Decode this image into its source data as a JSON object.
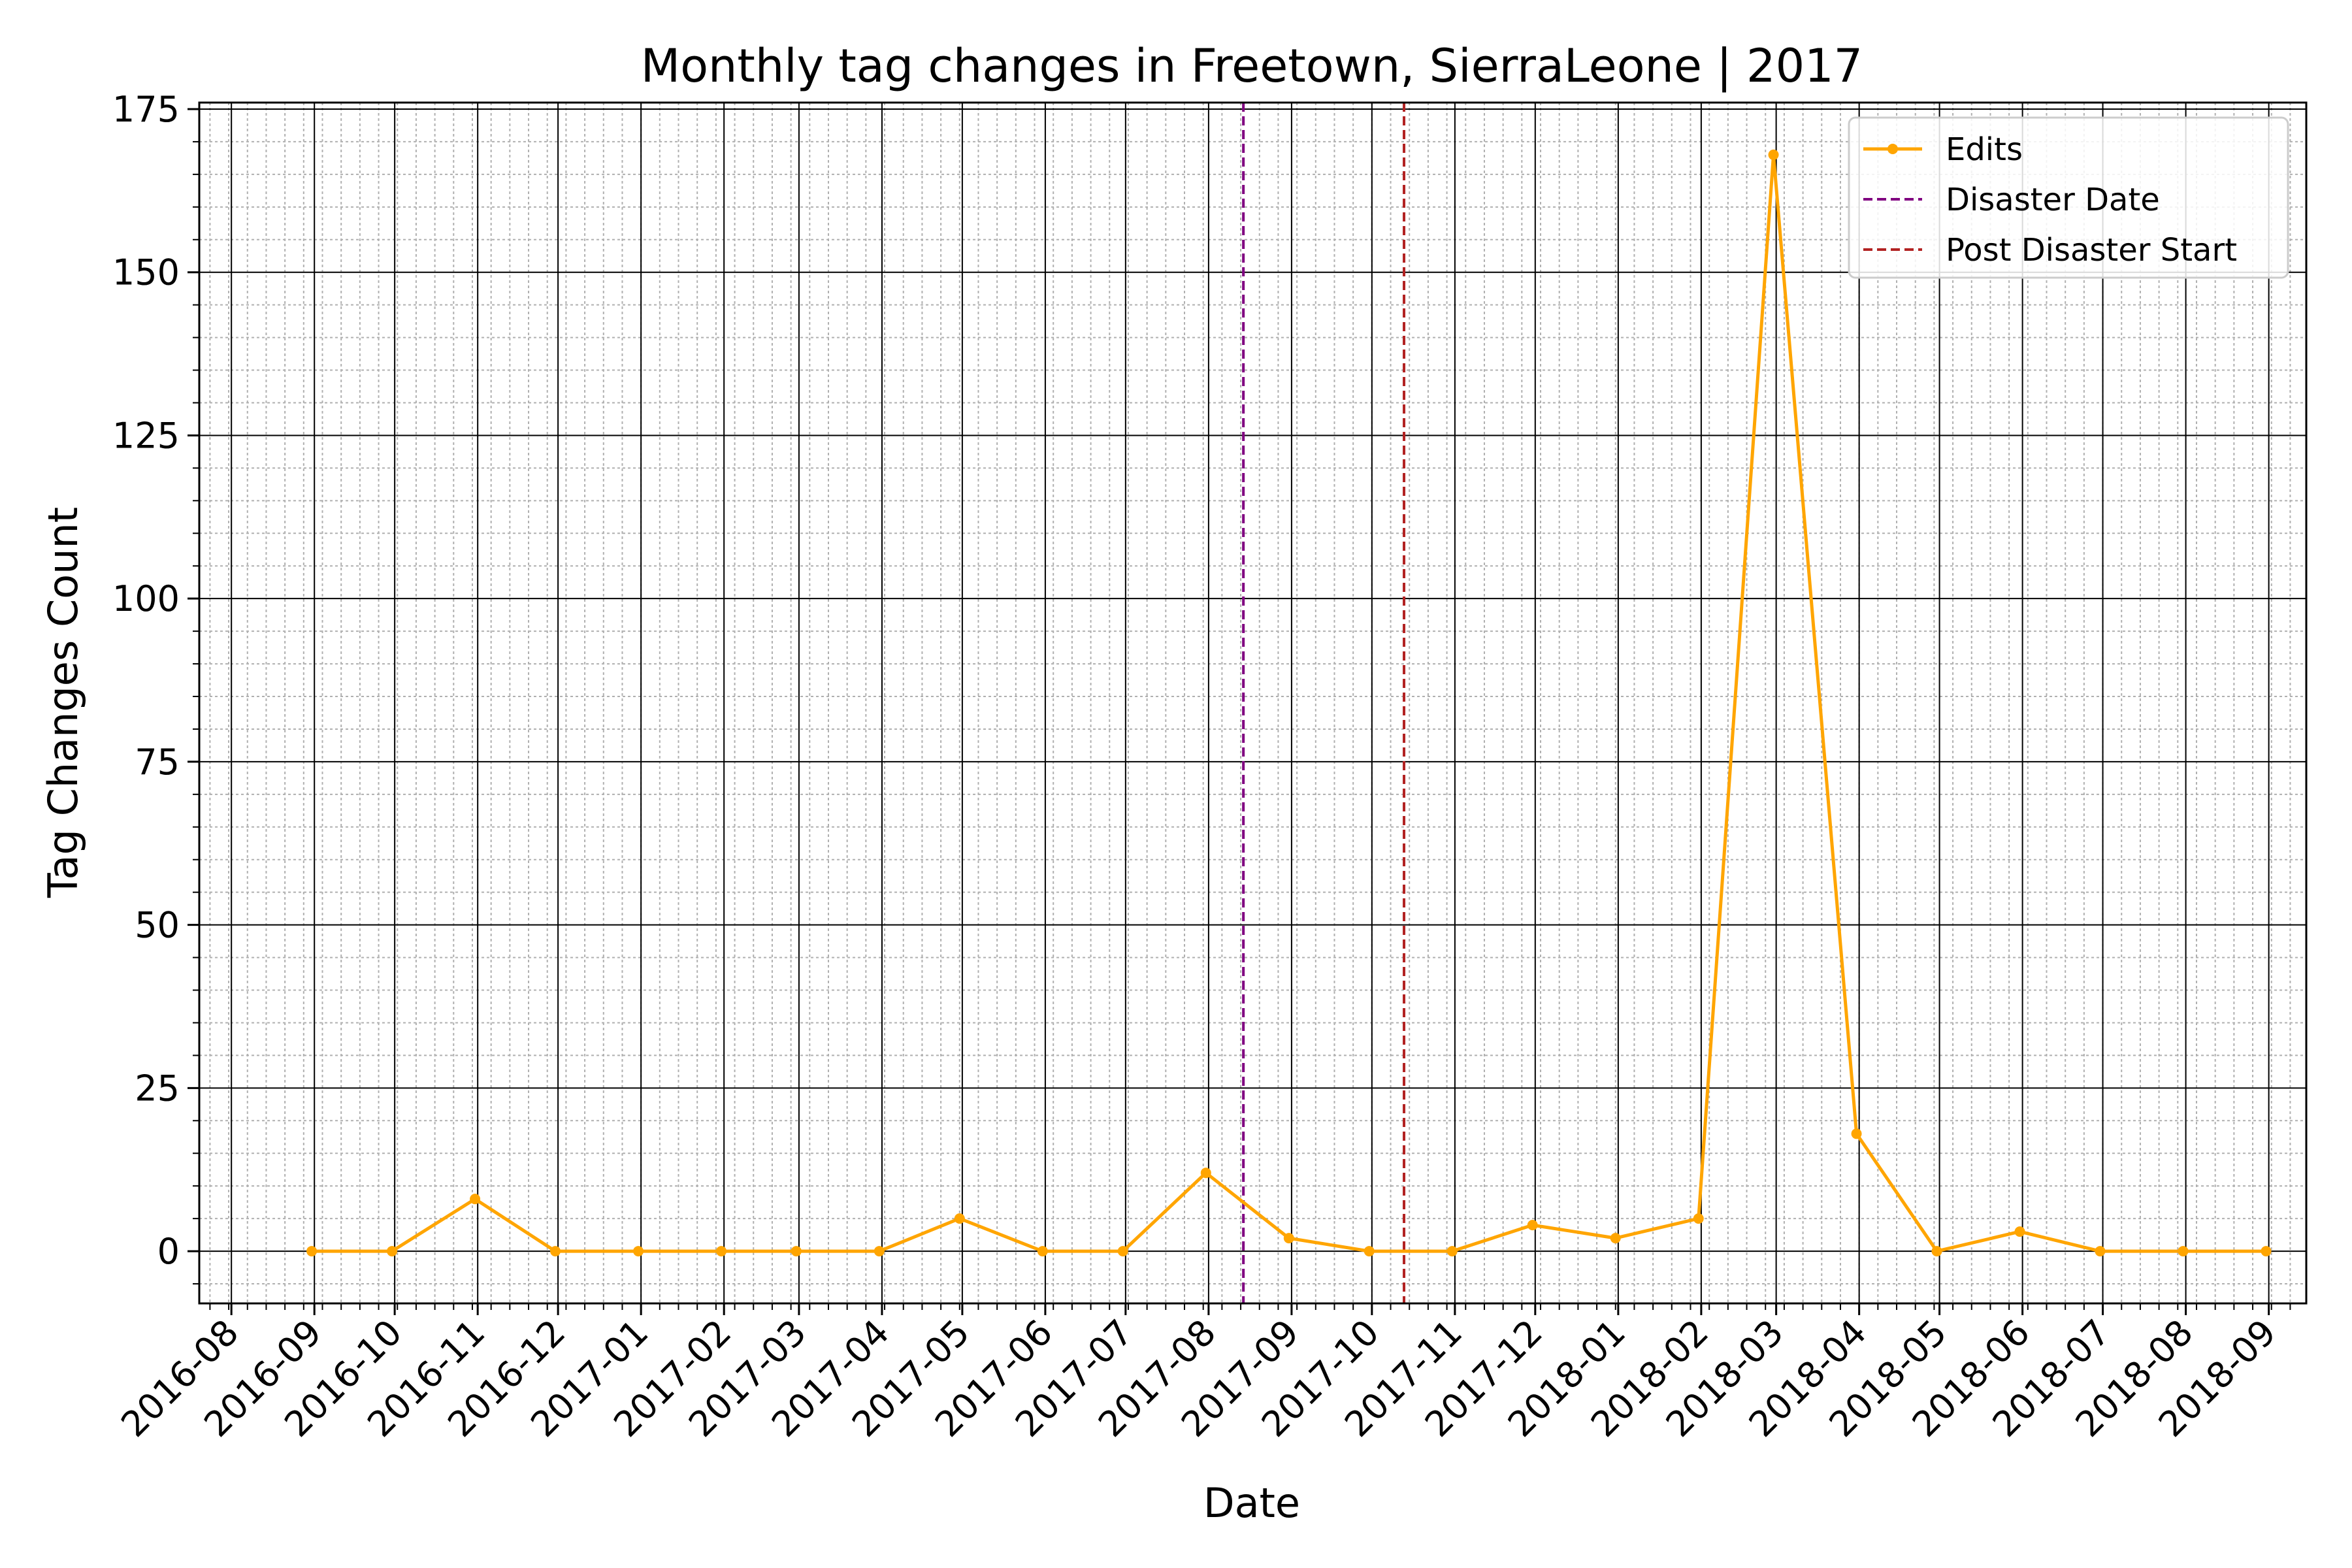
{
  "chart_data": {
    "type": "line",
    "title": "Monthly tag changes in Freetown, SierraLeone | 2017",
    "xlabel": "Date",
    "ylabel": "Tag Changes Count",
    "ylim": [
      -8,
      176
    ],
    "xlim": [
      "2016-07-20",
      "2018-09-15"
    ],
    "x_ticks": [
      "2016-08",
      "2016-09",
      "2016-10",
      "2016-11",
      "2016-12",
      "2017-01",
      "2017-02",
      "2017-03",
      "2017-04",
      "2017-05",
      "2017-06",
      "2017-07",
      "2017-08",
      "2017-09",
      "2017-10",
      "2017-11",
      "2017-12",
      "2018-01",
      "2018-02",
      "2018-03",
      "2018-04",
      "2018-05",
      "2018-06",
      "2018-07",
      "2018-08",
      "2018-09"
    ],
    "y_ticks": [
      0,
      25,
      50,
      75,
      100,
      125,
      150,
      175
    ],
    "grid": {
      "major": true,
      "minor": true
    },
    "legend_position": "top-right",
    "series": [
      {
        "name": "Edits",
        "color": "#FFA500",
        "marker": "dot",
        "x": [
          "2016-08-31",
          "2016-09-30",
          "2016-10-31",
          "2016-11-30",
          "2016-12-31",
          "2017-01-31",
          "2017-02-28",
          "2017-03-31",
          "2017-04-30",
          "2017-05-31",
          "2017-06-30",
          "2017-07-31",
          "2017-08-31",
          "2017-09-30",
          "2017-10-31",
          "2017-11-30",
          "2017-12-31",
          "2018-01-31",
          "2018-02-28",
          "2018-03-31",
          "2018-04-30",
          "2018-05-31",
          "2018-06-30",
          "2018-07-31",
          "2018-08-31"
        ],
        "values": [
          0,
          0,
          8,
          0,
          0,
          0,
          0,
          0,
          5,
          0,
          0,
          12,
          2,
          0,
          0,
          4,
          2,
          5,
          168,
          18,
          0,
          3,
          0,
          0,
          0
        ]
      }
    ],
    "vlines": [
      {
        "name": "Disaster Date",
        "x": "2017-08-14",
        "color": "#800080",
        "style": "dashed"
      },
      {
        "name": "Post Disaster Start",
        "x": "2017-10-13",
        "color": "#B22222",
        "style": "dashed"
      }
    ]
  }
}
